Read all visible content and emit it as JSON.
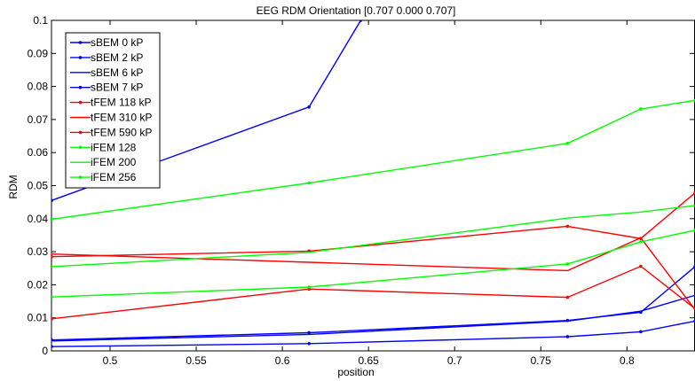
{
  "chart_data": {
    "type": "line",
    "title": "EEG RDM Orientation [0.707 0.000 0.707]",
    "xlabel": "position",
    "ylabel": "RDM",
    "xlim": [
      0.466,
      0.8395
    ],
    "ylim": [
      0,
      0.1
    ],
    "xticks": [
      0.5,
      0.55,
      0.6,
      0.65,
      0.7,
      0.75,
      0.8
    ],
    "xtick_labels": [
      "0.5",
      "0.55",
      "0.6",
      "0.65",
      "0.7",
      "0.75",
      "0.8"
    ],
    "yticks": [
      0,
      0.01,
      0.02,
      0.03,
      0.04,
      0.05,
      0.06,
      0.07,
      0.08,
      0.09,
      0.1
    ],
    "ytick_labels": [
      "0",
      "0.01",
      "0.02",
      "0.03",
      "0.04",
      "0.05",
      "0.06",
      "0.07",
      "0.08",
      "0.09",
      "0.1"
    ],
    "grid": false,
    "legend_position": "top-left",
    "series": [
      {
        "name": "sBEM 0 kP",
        "color": "#0000ff",
        "marker": "dot",
        "x": [
          0.466,
          0.6155,
          0.6455
        ],
        "y": [
          0.0455,
          0.0738,
          0.1
        ]
      },
      {
        "name": "sBEM 2 kP",
        "color": "#0000ff",
        "marker": "dot",
        "x": [
          0.466,
          0.6155,
          0.7655,
          0.808,
          0.8395
        ],
        "y": [
          0.0033,
          0.0055,
          0.0092,
          0.0117,
          0.0255
        ]
      },
      {
        "name": "sBEM 6 kP",
        "color": "#0000ff",
        "marker": "none",
        "x": [
          0.466,
          0.6155,
          0.7655,
          0.808,
          0.8395
        ],
        "y": [
          0.003,
          0.005,
          0.009,
          0.012,
          0.0168
        ]
      },
      {
        "name": "sBEM 7 kP",
        "color": "#0000ff",
        "marker": "dot",
        "x": [
          0.466,
          0.6155,
          0.7655,
          0.808,
          0.8395
        ],
        "y": [
          0.0013,
          0.0022,
          0.0043,
          0.0058,
          0.009
        ]
      },
      {
        "name": "tFEM 118 kP",
        "color": "#ff0000",
        "marker": "dot",
        "x": [
          0.466,
          0.6155,
          0.7655,
          0.808,
          0.8395
        ],
        "y": [
          0.0285,
          0.0302,
          0.0377,
          0.034,
          0.0478
        ]
      },
      {
        "name": "tFEM 310 kP",
        "color": "#ff0000",
        "marker": "none",
        "x": [
          0.466,
          0.6155,
          0.7655,
          0.808,
          0.8395
        ],
        "y": [
          0.0293,
          0.0268,
          0.0243,
          0.0342,
          0.0125
        ]
      },
      {
        "name": "tFEM 590 kP",
        "color": "#ff0000",
        "marker": "dot",
        "x": [
          0.466,
          0.6155,
          0.7655,
          0.808,
          0.8395
        ],
        "y": [
          0.0097,
          0.0187,
          0.0162,
          0.0256,
          0.0128
        ]
      },
      {
        "name": "iFEM 128",
        "color": "#00ff00",
        "marker": "dot",
        "x": [
          0.466,
          0.6155,
          0.7655,
          0.808,
          0.8395
        ],
        "y": [
          0.0398,
          0.0508,
          0.0628,
          0.0732,
          0.0758
        ]
      },
      {
        "name": "iFEM 200",
        "color": "#00ff00",
        "marker": "none",
        "x": [
          0.466,
          0.6155,
          0.7655,
          0.808,
          0.8395
        ],
        "y": [
          0.0255,
          0.0298,
          0.0402,
          0.042,
          0.044
        ]
      },
      {
        "name": "iFEM 256",
        "color": "#00ff00",
        "marker": "dot",
        "x": [
          0.466,
          0.6155,
          0.7655,
          0.808,
          0.8395
        ],
        "y": [
          0.0163,
          0.0193,
          0.0263,
          0.033,
          0.0365
        ]
      }
    ]
  }
}
